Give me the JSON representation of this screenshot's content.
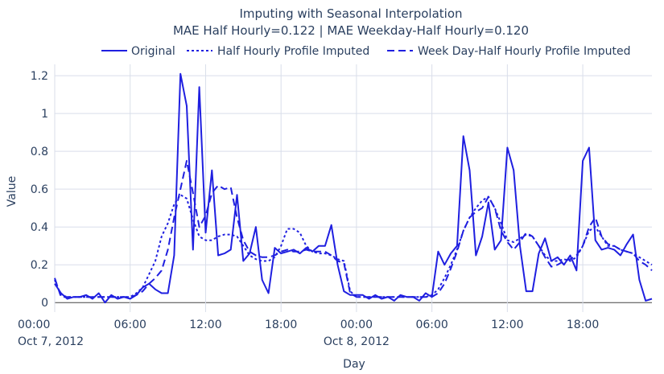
{
  "chart_data": {
    "type": "line",
    "title": "Imputing with Seasonal Interpolation",
    "subtitle": "MAE Half Hourly=0.122 | MAE Weekday-Half Hourly=0.120",
    "xlabel": "Day",
    "ylabel": "Value",
    "x_range_hours": [
      0,
      47.5
    ],
    "ylim": [
      -0.05,
      1.26
    ],
    "grid": true,
    "legend_position": "top-right",
    "x_ticks": [
      {
        "x": 0,
        "line1": "00:00",
        "line2": "Oct 7, 2012"
      },
      {
        "x": 6,
        "line1": "06:00",
        "line2": ""
      },
      {
        "x": 12,
        "line1": "12:00",
        "line2": ""
      },
      {
        "x": 18,
        "line1": "18:00",
        "line2": ""
      },
      {
        "x": 24,
        "line1": "00:00",
        "line2": "Oct 8, 2012"
      },
      {
        "x": 30,
        "line1": "06:00",
        "line2": ""
      },
      {
        "x": 36,
        "line1": "12:00",
        "line2": ""
      },
      {
        "x": 42,
        "line1": "18:00",
        "line2": ""
      }
    ],
    "y_ticks": [
      {
        "y": 0,
        "label": "0"
      },
      {
        "y": 0.2,
        "label": "0.2"
      },
      {
        "y": 0.4,
        "label": "0.4"
      },
      {
        "y": 0.6,
        "label": "0.6"
      },
      {
        "y": 0.8,
        "label": "0.8"
      },
      {
        "y": 1.0,
        "label": "1"
      },
      {
        "y": 1.2,
        "label": "1.2"
      }
    ],
    "color": "#1f1fe0",
    "series": [
      {
        "name": "Original",
        "dash": "solid",
        "points": [
          [
            0,
            0.1
          ],
          [
            0.5,
            0.05
          ],
          [
            1,
            0.02
          ],
          [
            1.5,
            0.03
          ],
          [
            2,
            0.03
          ],
          [
            2.5,
            0.04
          ],
          [
            3,
            0.02
          ],
          [
            3.5,
            0.05
          ],
          [
            4,
            0.0
          ],
          [
            4.5,
            0.04
          ],
          [
            5,
            0.02
          ],
          [
            5.5,
            0.03
          ],
          [
            6,
            0.02
          ],
          [
            6.5,
            0.04
          ],
          [
            7,
            0.08
          ],
          [
            7.5,
            0.1
          ],
          [
            8,
            0.07
          ],
          [
            8.5,
            0.05
          ],
          [
            9,
            0.05
          ],
          [
            9.5,
            0.25
          ],
          [
            10,
            1.21
          ],
          [
            10.5,
            1.04
          ],
          [
            11,
            0.28
          ],
          [
            11.5,
            1.14
          ],
          [
            12,
            0.37
          ],
          [
            12.5,
            0.7
          ],
          [
            13,
            0.25
          ],
          [
            13.5,
            0.26
          ],
          [
            14,
            0.28
          ],
          [
            14.5,
            0.57
          ],
          [
            15,
            0.22
          ],
          [
            15.5,
            0.26
          ],
          [
            16,
            0.4
          ],
          [
            16.5,
            0.12
          ],
          [
            17,
            0.05
          ],
          [
            17.5,
            0.29
          ],
          [
            18,
            0.26
          ],
          [
            18.5,
            0.27
          ],
          [
            19,
            0.28
          ],
          [
            19.5,
            0.26
          ],
          [
            20,
            0.29
          ],
          [
            20.5,
            0.27
          ],
          [
            21,
            0.3
          ],
          [
            21.5,
            0.3
          ],
          [
            22,
            0.41
          ],
          [
            22.5,
            0.2
          ],
          [
            23,
            0.06
          ],
          [
            23.5,
            0.04
          ],
          [
            24,
            0.04
          ],
          [
            24.5,
            0.04
          ],
          [
            25,
            0.02
          ],
          [
            25.5,
            0.04
          ],
          [
            26,
            0.02
          ],
          [
            26.5,
            0.03
          ],
          [
            27,
            0.01
          ],
          [
            27.5,
            0.04
          ],
          [
            28,
            0.03
          ],
          [
            28.5,
            0.03
          ],
          [
            29,
            0.01
          ],
          [
            29.5,
            0.05
          ],
          [
            30,
            0.03
          ],
          [
            30.5,
            0.27
          ],
          [
            31,
            0.2
          ],
          [
            31.5,
            0.26
          ],
          [
            32,
            0.3
          ],
          [
            32.5,
            0.88
          ],
          [
            33,
            0.7
          ],
          [
            33.5,
            0.25
          ],
          [
            34,
            0.35
          ],
          [
            34.5,
            0.53
          ],
          [
            35,
            0.28
          ],
          [
            35.5,
            0.33
          ],
          [
            36,
            0.82
          ],
          [
            36.5,
            0.7
          ],
          [
            37,
            0.3
          ],
          [
            37.5,
            0.06
          ],
          [
            38,
            0.06
          ],
          [
            38.5,
            0.26
          ],
          [
            39,
            0.34
          ],
          [
            39.5,
            0.22
          ],
          [
            40,
            0.24
          ],
          [
            40.5,
            0.2
          ],
          [
            41,
            0.25
          ],
          [
            41.5,
            0.17
          ],
          [
            42,
            0.75
          ],
          [
            42.5,
            0.82
          ],
          [
            43,
            0.33
          ],
          [
            43.5,
            0.28
          ],
          [
            44,
            0.29
          ],
          [
            44.5,
            0.28
          ],
          [
            45,
            0.25
          ],
          [
            45.5,
            0.31
          ],
          [
            46,
            0.36
          ],
          [
            46.5,
            0.12
          ],
          [
            47,
            0.01
          ],
          [
            47.5,
            0.02
          ]
        ]
      },
      {
        "name": "Half Hourly Profile Imputed",
        "dash": "dot",
        "points": [
          [
            0,
            0.12
          ],
          [
            0.5,
            0.04
          ],
          [
            1,
            0.03
          ],
          [
            1.5,
            0.03
          ],
          [
            2,
            0.03
          ],
          [
            2.5,
            0.03
          ],
          [
            3,
            0.03
          ],
          [
            3.5,
            0.03
          ],
          [
            4,
            0.03
          ],
          [
            4.5,
            0.03
          ],
          [
            5,
            0.03
          ],
          [
            5.5,
            0.03
          ],
          [
            6,
            0.03
          ],
          [
            6.5,
            0.05
          ],
          [
            7,
            0.08
          ],
          [
            7.5,
            0.15
          ],
          [
            8,
            0.22
          ],
          [
            8.5,
            0.35
          ],
          [
            9,
            0.42
          ],
          [
            9.5,
            0.52
          ],
          [
            10,
            0.57
          ],
          [
            10.5,
            0.55
          ],
          [
            11,
            0.44
          ],
          [
            11.5,
            0.35
          ],
          [
            12,
            0.33
          ],
          [
            12.5,
            0.33
          ],
          [
            13,
            0.35
          ],
          [
            13.5,
            0.36
          ],
          [
            14,
            0.36
          ],
          [
            14.5,
            0.35
          ],
          [
            15,
            0.3
          ],
          [
            15.5,
            0.25
          ],
          [
            16,
            0.23
          ],
          [
            16.5,
            0.22
          ],
          [
            17,
            0.22
          ],
          [
            17.5,
            0.24
          ],
          [
            18,
            0.3
          ],
          [
            18.5,
            0.39
          ],
          [
            19,
            0.39
          ],
          [
            19.5,
            0.37
          ],
          [
            20,
            0.3
          ],
          [
            20.5,
            0.27
          ],
          [
            21,
            0.26
          ],
          [
            21.5,
            0.26
          ],
          [
            22,
            0.25
          ],
          [
            22.5,
            0.23
          ],
          [
            23,
            0.22
          ],
          [
            23.5,
            0.06
          ],
          [
            24,
            0.03
          ],
          [
            24.5,
            0.03
          ],
          [
            25,
            0.03
          ],
          [
            25.5,
            0.03
          ],
          [
            26,
            0.03
          ],
          [
            26.5,
            0.03
          ],
          [
            27,
            0.03
          ],
          [
            27.5,
            0.03
          ],
          [
            28,
            0.03
          ],
          [
            28.5,
            0.03
          ],
          [
            29,
            0.03
          ],
          [
            29.5,
            0.03
          ],
          [
            30,
            0.04
          ],
          [
            30.5,
            0.07
          ],
          [
            31,
            0.13
          ],
          [
            31.5,
            0.2
          ],
          [
            32,
            0.28
          ],
          [
            32.5,
            0.38
          ],
          [
            33,
            0.45
          ],
          [
            33.5,
            0.5
          ],
          [
            34,
            0.54
          ],
          [
            34.5,
            0.56
          ],
          [
            35,
            0.5
          ],
          [
            35.5,
            0.42
          ],
          [
            36,
            0.33
          ],
          [
            36.5,
            0.32
          ],
          [
            37,
            0.34
          ],
          [
            37.5,
            0.36
          ],
          [
            38,
            0.35
          ],
          [
            38.5,
            0.3
          ],
          [
            39,
            0.25
          ],
          [
            39.5,
            0.22
          ],
          [
            40,
            0.22
          ],
          [
            40.5,
            0.23
          ],
          [
            41,
            0.22
          ],
          [
            41.5,
            0.24
          ],
          [
            42,
            0.3
          ],
          [
            42.5,
            0.38
          ],
          [
            43,
            0.4
          ],
          [
            43.5,
            0.35
          ],
          [
            44,
            0.3
          ],
          [
            44.5,
            0.3
          ],
          [
            45,
            0.28
          ],
          [
            45.5,
            0.27
          ],
          [
            46,
            0.26
          ],
          [
            46.5,
            0.24
          ],
          [
            47,
            0.22
          ],
          [
            47.5,
            0.2
          ]
        ]
      },
      {
        "name": "Week Day-Half Hourly Profile Imputed",
        "dash": "dash",
        "points": [
          [
            0,
            0.13
          ],
          [
            0.5,
            0.03
          ],
          [
            1,
            0.03
          ],
          [
            1.5,
            0.03
          ],
          [
            2,
            0.03
          ],
          [
            2.5,
            0.03
          ],
          [
            3,
            0.03
          ],
          [
            3.5,
            0.03
          ],
          [
            4,
            0.03
          ],
          [
            4.5,
            0.03
          ],
          [
            5,
            0.03
          ],
          [
            5.5,
            0.03
          ],
          [
            6,
            0.03
          ],
          [
            6.5,
            0.04
          ],
          [
            7,
            0.06
          ],
          [
            7.5,
            0.1
          ],
          [
            8,
            0.13
          ],
          [
            8.5,
            0.17
          ],
          [
            9,
            0.28
          ],
          [
            9.5,
            0.45
          ],
          [
            10,
            0.6
          ],
          [
            10.5,
            0.75
          ],
          [
            11,
            0.58
          ],
          [
            11.5,
            0.4
          ],
          [
            12,
            0.46
          ],
          [
            12.5,
            0.58
          ],
          [
            13,
            0.62
          ],
          [
            13.5,
            0.6
          ],
          [
            14,
            0.61
          ],
          [
            14.5,
            0.45
          ],
          [
            15,
            0.33
          ],
          [
            15.5,
            0.27
          ],
          [
            16,
            0.25
          ],
          [
            16.5,
            0.24
          ],
          [
            17,
            0.24
          ],
          [
            17.5,
            0.25
          ],
          [
            18,
            0.27
          ],
          [
            18.5,
            0.28
          ],
          [
            19,
            0.27
          ],
          [
            19.5,
            0.27
          ],
          [
            20,
            0.28
          ],
          [
            20.5,
            0.27
          ],
          [
            21,
            0.27
          ],
          [
            21.5,
            0.27
          ],
          [
            22,
            0.25
          ],
          [
            22.5,
            0.22
          ],
          [
            23,
            0.21
          ],
          [
            23.5,
            0.05
          ],
          [
            24,
            0.03
          ],
          [
            24.5,
            0.03
          ],
          [
            25,
            0.03
          ],
          [
            25.5,
            0.03
          ],
          [
            26,
            0.03
          ],
          [
            26.5,
            0.03
          ],
          [
            27,
            0.03
          ],
          [
            27.5,
            0.03
          ],
          [
            28,
            0.03
          ],
          [
            28.5,
            0.03
          ],
          [
            29,
            0.03
          ],
          [
            29.5,
            0.03
          ],
          [
            30,
            0.03
          ],
          [
            30.5,
            0.05
          ],
          [
            31,
            0.1
          ],
          [
            31.5,
            0.18
          ],
          [
            32,
            0.27
          ],
          [
            32.5,
            0.38
          ],
          [
            33,
            0.45
          ],
          [
            33.5,
            0.48
          ],
          [
            34,
            0.5
          ],
          [
            34.5,
            0.56
          ],
          [
            35,
            0.5
          ],
          [
            35.5,
            0.38
          ],
          [
            36,
            0.32
          ],
          [
            36.5,
            0.28
          ],
          [
            37,
            0.32
          ],
          [
            37.5,
            0.37
          ],
          [
            38,
            0.35
          ],
          [
            38.5,
            0.3
          ],
          [
            39,
            0.24
          ],
          [
            39.5,
            0.19
          ],
          [
            40,
            0.2
          ],
          [
            40.5,
            0.22
          ],
          [
            41,
            0.23
          ],
          [
            41.5,
            0.25
          ],
          [
            42,
            0.3
          ],
          [
            42.5,
            0.4
          ],
          [
            43,
            0.45
          ],
          [
            43.5,
            0.35
          ],
          [
            44,
            0.31
          ],
          [
            44.5,
            0.3
          ],
          [
            45,
            0.28
          ],
          [
            45.5,
            0.27
          ],
          [
            46,
            0.26
          ],
          [
            46.5,
            0.22
          ],
          [
            47,
            0.2
          ],
          [
            47.5,
            0.17
          ]
        ]
      }
    ]
  }
}
